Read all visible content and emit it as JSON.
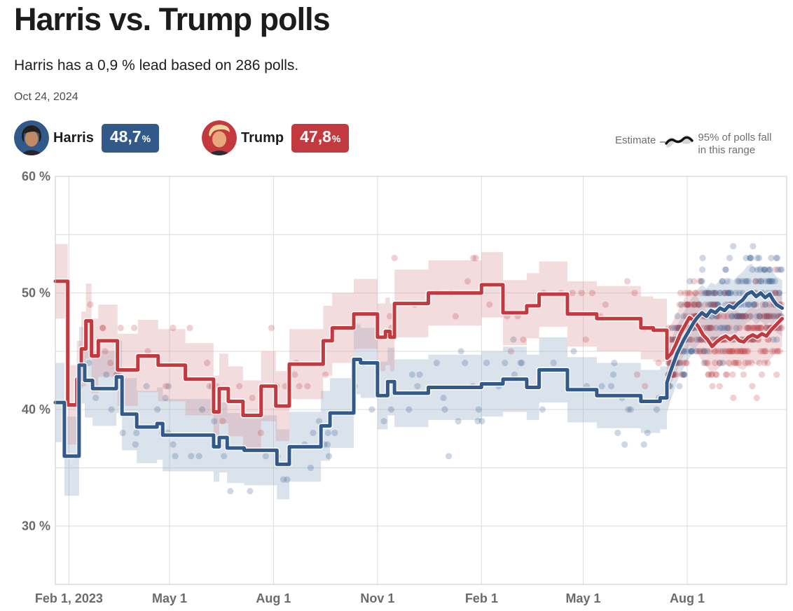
{
  "header": {
    "title": "Harris vs. Trump polls",
    "subtitle": "Harris has a 0,9 % lead based on 286 polls.",
    "date": "Oct 24, 2024"
  },
  "legend": {
    "harris": {
      "name": "Harris",
      "value": "48,7",
      "percent_sign": "%"
    },
    "trump": {
      "name": "Trump",
      "value": "47,8",
      "percent_sign": "%"
    },
    "estimate_label": "Estimate",
    "range_label_line1": "95% of polls fall",
    "range_label_line2": "in this range"
  },
  "colors": {
    "harris": "#31598a",
    "trump": "#c23a3f",
    "harris_band": "#8fa7c4",
    "trump_band": "#d89598",
    "harris_dot": "#31598a",
    "trump_dot": "#c23a3f",
    "grid": "#dcdcdc",
    "frame": "#c8c8c8",
    "axis_text": "#6b6b6b",
    "estimate_line": "#111111",
    "estimate_band": "#d6d6d6"
  },
  "chart_data": {
    "type": "line",
    "subtype": "step-estimate-with-poll-scatter",
    "x_domain": [
      "2023-01-20",
      "2024-10-28"
    ],
    "ylim": [
      25,
      60
    ],
    "grid": true,
    "y_gridlines": [
      30,
      35,
      40,
      45,
      50,
      55,
      60
    ],
    "y_ticks": [
      {
        "value": 60,
        "label": "60 %"
      },
      {
        "value": 50,
        "label": "50 %"
      },
      {
        "value": 40,
        "label": "40 %"
      },
      {
        "value": 30,
        "label": "30 %"
      }
    ],
    "x_ticks": [
      {
        "date": "2023-02-01",
        "label": "Feb 1, 2023"
      },
      {
        "date": "2023-05-01",
        "label": "May 1"
      },
      {
        "date": "2023-08-01",
        "label": "Aug 1"
      },
      {
        "date": "2023-11-01",
        "label": "Nov 1"
      },
      {
        "date": "2024-02-01",
        "label": "Feb 1"
      },
      {
        "date": "2024-05-01",
        "label": "May 1"
      },
      {
        "date": "2024-08-01",
        "label": "Aug 1"
      }
    ],
    "linear_from": "2024-07-14",
    "series": [
      {
        "name": "Harris",
        "end_value": 48.7,
        "points": [
          [
            "2023-01-20",
            40.6,
            3.4
          ],
          [
            "2023-01-28",
            36.0,
            3.4
          ],
          [
            "2023-02-10",
            43.8,
            3.3
          ],
          [
            "2023-02-15",
            42.5,
            3.2
          ],
          [
            "2023-02-22",
            41.8,
            3.2
          ],
          [
            "2023-03-15",
            42.8,
            3.1
          ],
          [
            "2023-03-20",
            39.6,
            3.1
          ],
          [
            "2023-04-02",
            38.5,
            3.1
          ],
          [
            "2023-04-20",
            38.8,
            3.1
          ],
          [
            "2023-04-25",
            37.8,
            3.1
          ],
          [
            "2023-06-09",
            36.8,
            3.0
          ],
          [
            "2023-06-14",
            37.6,
            3.0
          ],
          [
            "2023-06-21",
            36.7,
            3.0
          ],
          [
            "2023-07-06",
            36.5,
            3.0
          ],
          [
            "2023-08-04",
            35.3,
            3.0
          ],
          [
            "2023-08-15",
            36.8,
            3.0
          ],
          [
            "2023-09-12",
            38.6,
            3.0
          ],
          [
            "2023-09-20",
            39.7,
            3.0
          ],
          [
            "2023-10-11",
            44.3,
            3.0
          ],
          [
            "2023-10-17",
            44.0,
            3.0
          ],
          [
            "2023-11-01",
            41.2,
            2.9
          ],
          [
            "2023-11-10",
            42.4,
            2.9
          ],
          [
            "2023-11-16",
            41.4,
            2.9
          ],
          [
            "2023-12-16",
            41.9,
            2.8
          ],
          [
            "2024-02-01",
            42.2,
            2.8
          ],
          [
            "2024-02-20",
            42.6,
            2.8
          ],
          [
            "2024-03-12",
            41.9,
            2.8
          ],
          [
            "2024-03-23",
            43.4,
            2.8
          ],
          [
            "2024-04-17",
            41.7,
            2.8
          ],
          [
            "2024-05-13",
            41.2,
            2.8
          ],
          [
            "2024-06-21",
            40.7,
            2.7
          ],
          [
            "2024-07-08",
            41.0,
            2.7
          ],
          [
            "2024-07-14",
            42.3,
            2.6
          ],
          [
            "2024-07-17",
            43.2,
            2.5
          ],
          [
            "2024-07-20",
            44.0,
            2.5
          ],
          [
            "2024-07-23",
            44.8,
            2.4
          ],
          [
            "2024-07-26",
            45.4,
            2.4
          ],
          [
            "2024-07-29",
            46.0,
            2.4
          ],
          [
            "2024-08-01",
            46.5,
            2.4
          ],
          [
            "2024-08-04",
            47.0,
            2.4
          ],
          [
            "2024-08-07",
            47.5,
            2.4
          ],
          [
            "2024-08-10",
            47.9,
            2.4
          ],
          [
            "2024-08-14",
            48.3,
            2.4
          ],
          [
            "2024-08-18",
            48.0,
            2.4
          ],
          [
            "2024-08-22",
            48.5,
            2.4
          ],
          [
            "2024-08-26",
            48.3,
            2.4
          ],
          [
            "2024-08-30",
            48.7,
            2.4
          ],
          [
            "2024-09-03",
            48.5,
            2.4
          ],
          [
            "2024-09-07",
            48.9,
            2.4
          ],
          [
            "2024-09-11",
            48.7,
            2.4
          ],
          [
            "2024-09-15",
            49.1,
            2.4
          ],
          [
            "2024-09-19",
            49.4,
            2.4
          ],
          [
            "2024-09-23",
            49.9,
            2.4
          ],
          [
            "2024-09-27",
            50.1,
            2.4
          ],
          [
            "2024-10-01",
            49.7,
            2.4
          ],
          [
            "2024-10-05",
            50.0,
            2.4
          ],
          [
            "2024-10-09",
            49.6,
            2.4
          ],
          [
            "2024-10-13",
            49.9,
            2.4
          ],
          [
            "2024-10-16",
            49.4,
            2.4
          ],
          [
            "2024-10-19",
            49.0,
            2.4
          ],
          [
            "2024-10-24",
            48.7,
            2.4
          ]
        ]
      },
      {
        "name": "Trump",
        "end_value": 47.8,
        "points": [
          [
            "2023-01-20",
            51.0,
            3.2
          ],
          [
            "2023-01-31",
            40.4,
            3.4
          ],
          [
            "2023-02-08",
            42.6,
            3.3
          ],
          [
            "2023-02-12",
            45.2,
            3.2
          ],
          [
            "2023-02-16",
            47.6,
            3.2
          ],
          [
            "2023-02-21",
            44.6,
            3.2
          ],
          [
            "2023-02-27",
            45.9,
            3.1
          ],
          [
            "2023-03-16",
            43.4,
            3.1
          ],
          [
            "2023-04-03",
            44.6,
            3.1
          ],
          [
            "2023-04-21",
            43.8,
            3.1
          ],
          [
            "2023-05-15",
            42.6,
            3.1
          ],
          [
            "2023-06-09",
            39.8,
            3.1
          ],
          [
            "2023-06-14",
            41.8,
            3.0
          ],
          [
            "2023-06-22",
            40.7,
            3.0
          ],
          [
            "2023-07-05",
            39.5,
            3.0
          ],
          [
            "2023-07-21",
            42.0,
            3.0
          ],
          [
            "2023-08-03",
            40.3,
            3.0
          ],
          [
            "2023-08-15",
            43.9,
            3.0
          ],
          [
            "2023-09-14",
            45.9,
            3.0
          ],
          [
            "2023-09-22",
            47.0,
            3.0
          ],
          [
            "2023-10-11",
            48.2,
            3.0
          ],
          [
            "2023-11-01",
            46.2,
            2.9
          ],
          [
            "2023-11-08",
            46.7,
            2.9
          ],
          [
            "2023-11-12",
            46.2,
            2.9
          ],
          [
            "2023-11-16",
            49.1,
            2.9
          ],
          [
            "2023-12-16",
            50.0,
            2.8
          ],
          [
            "2024-02-01",
            50.7,
            2.8
          ],
          [
            "2024-02-20",
            48.3,
            2.8
          ],
          [
            "2024-03-12",
            48.9,
            2.8
          ],
          [
            "2024-03-23",
            49.9,
            2.8
          ],
          [
            "2024-04-17",
            48.2,
            2.8
          ],
          [
            "2024-05-13",
            47.8,
            2.8
          ],
          [
            "2024-06-21",
            47.0,
            2.7
          ],
          [
            "2024-07-02",
            46.8,
            2.7
          ],
          [
            "2024-07-14",
            44.4,
            2.6
          ],
          [
            "2024-07-18",
            44.8,
            2.5
          ],
          [
            "2024-07-22",
            45.6,
            2.5
          ],
          [
            "2024-07-26",
            46.5,
            2.4
          ],
          [
            "2024-07-30",
            47.2,
            2.4
          ],
          [
            "2024-08-03",
            47.9,
            2.4
          ],
          [
            "2024-08-07",
            47.6,
            2.4
          ],
          [
            "2024-08-11",
            47.1,
            2.4
          ],
          [
            "2024-08-15",
            46.4,
            2.4
          ],
          [
            "2024-08-19",
            46.0,
            2.4
          ],
          [
            "2024-08-23",
            45.4,
            2.4
          ],
          [
            "2024-08-27",
            45.8,
            2.4
          ],
          [
            "2024-08-31",
            46.1,
            2.4
          ],
          [
            "2024-09-04",
            46.3,
            2.4
          ],
          [
            "2024-09-08",
            46.0,
            2.4
          ],
          [
            "2024-09-12",
            46.3,
            2.4
          ],
          [
            "2024-09-16",
            45.9,
            2.4
          ],
          [
            "2024-09-20",
            45.8,
            2.4
          ],
          [
            "2024-09-24",
            46.2,
            2.4
          ],
          [
            "2024-09-28",
            46.4,
            2.4
          ],
          [
            "2024-10-02",
            46.2,
            2.4
          ],
          [
            "2024-10-06",
            46.5,
            2.4
          ],
          [
            "2024-10-10",
            46.3,
            2.4
          ],
          [
            "2024-10-14",
            46.8,
            2.4
          ],
          [
            "2024-10-18",
            47.2,
            2.4
          ],
          [
            "2024-10-21",
            47.5,
            2.4
          ],
          [
            "2024-10-24",
            47.8,
            2.4
          ]
        ]
      }
    ],
    "scatter": {
      "generated": true,
      "note": "individual poll results drawn as translucent dots around each estimate line",
      "seed": 11,
      "start": "2023-02-01",
      "sparse_per_day": 0.13,
      "dense_per_day": 2.4,
      "dense_from": "2024-07-15",
      "sigma_sparse": 2.3,
      "sigma_dense": 2.0,
      "dot_radius": 4.6,
      "dot_opacity": 0.24
    }
  }
}
